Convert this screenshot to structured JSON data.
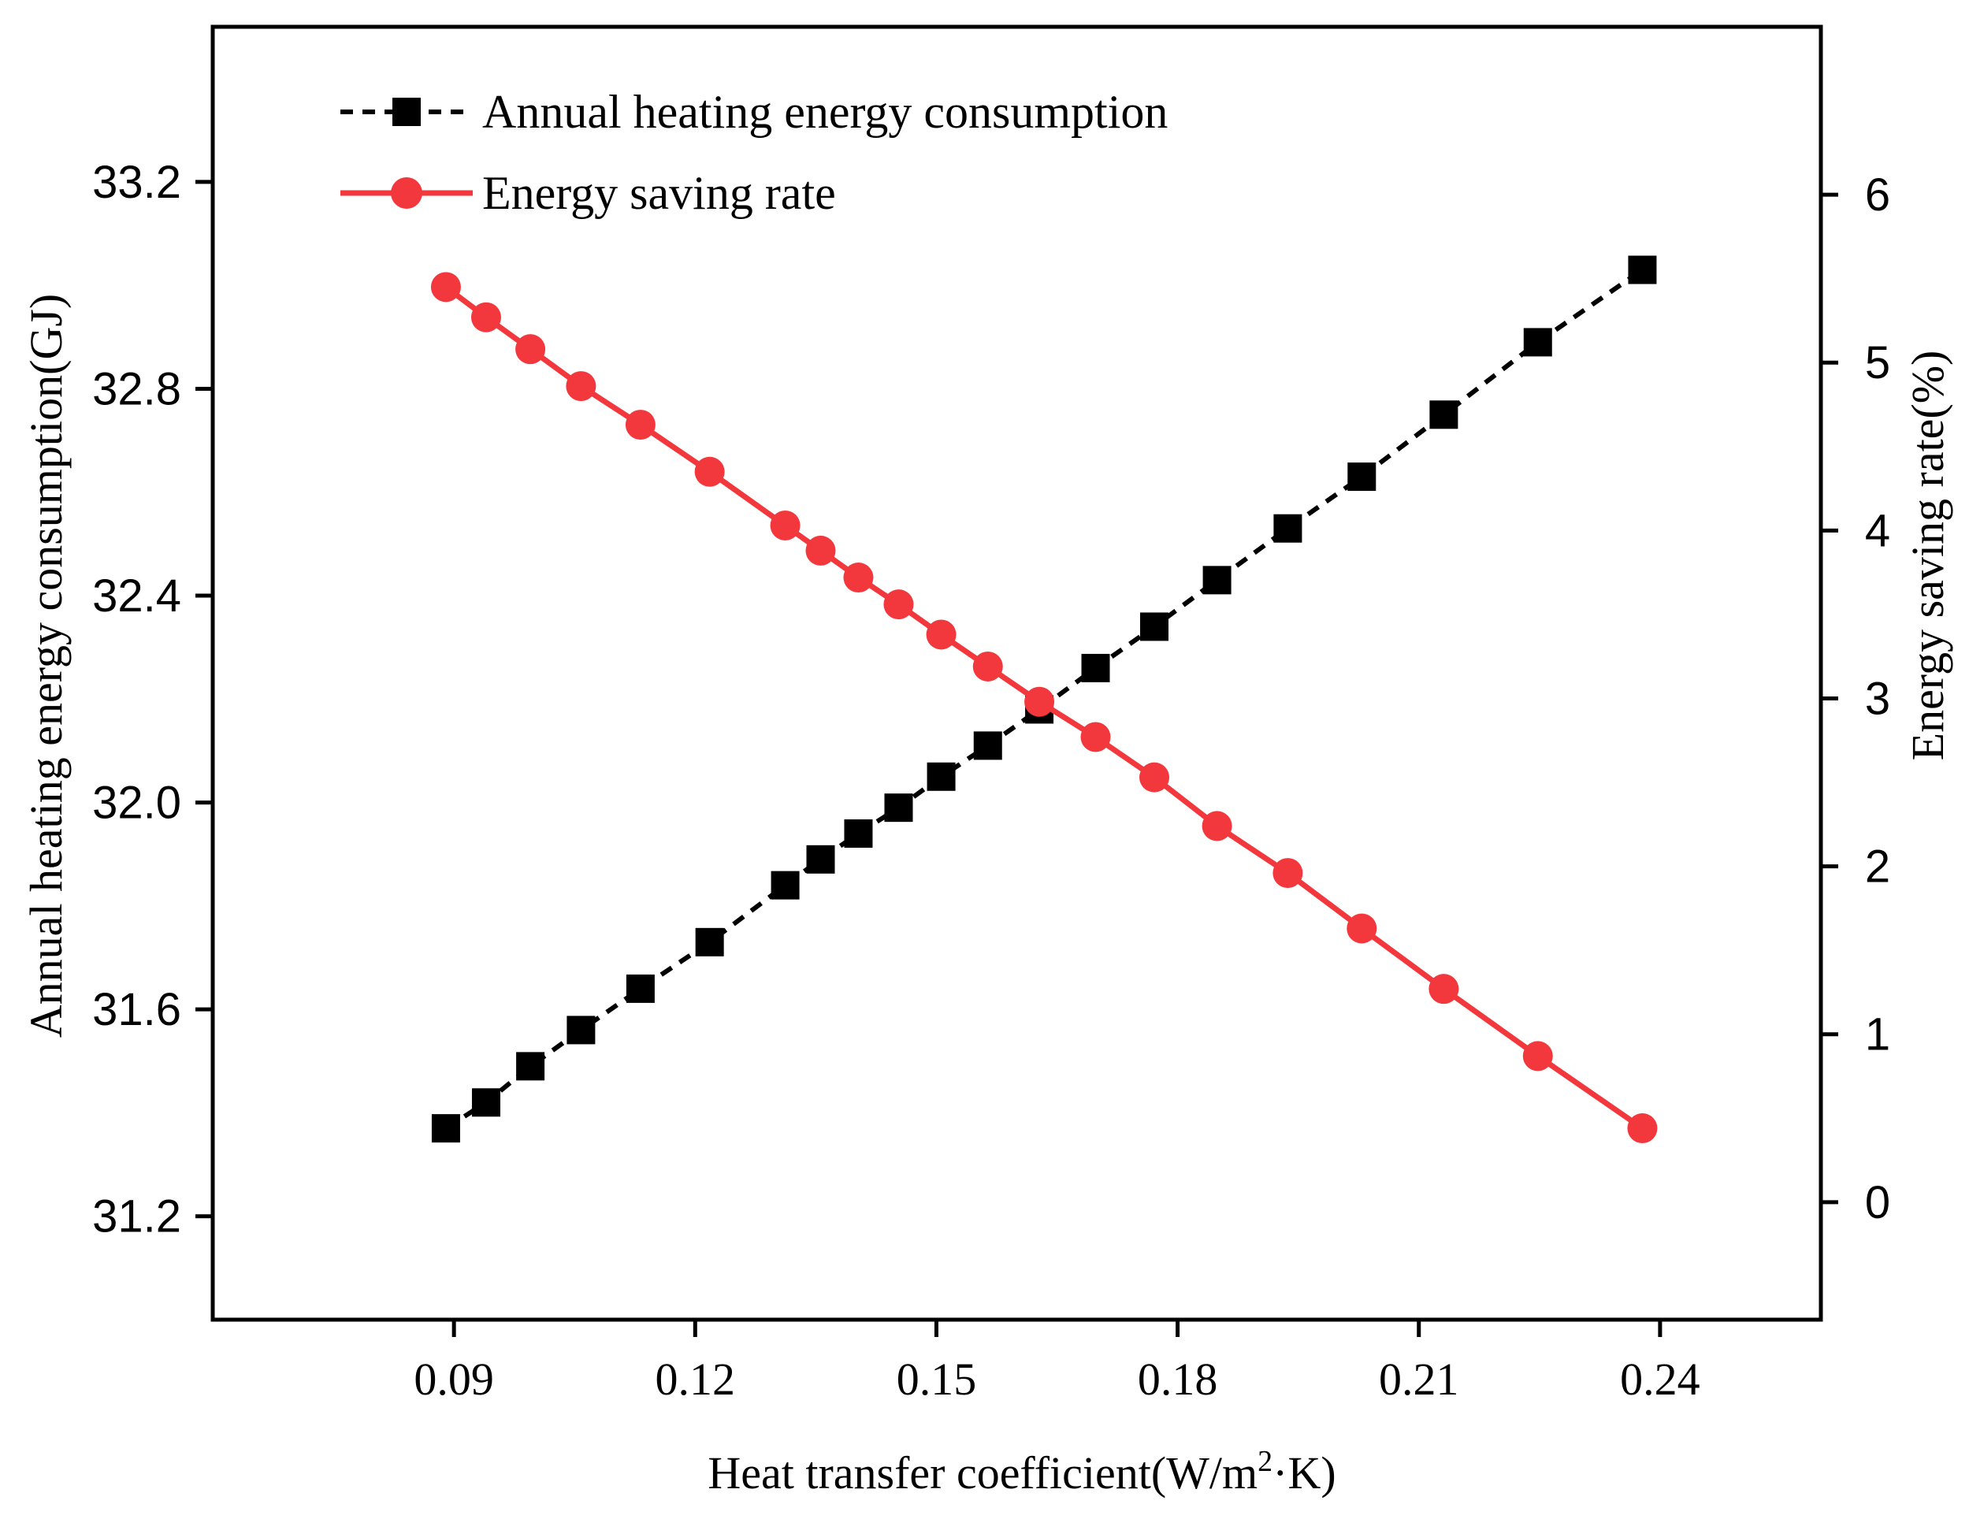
{
  "chart_data": {
    "type": "line",
    "xlabel": "Heat transfer coefficient(W/m²·K)",
    "xlabel_parts": {
      "main": "Heat transfer coefficient(W/m",
      "sup": "2",
      "tail": "·K)"
    },
    "ylabel_left": "Annual heating energy consumption(GJ)",
    "ylabel_right": "Energy saving rate(%)",
    "xlim": [
      0.06,
      0.26
    ],
    "ylim_left": [
      31.0,
      33.5
    ],
    "ylim_right": [
      -0.7,
      7.0
    ],
    "x_ticks": [
      {
        "v": 0.09,
        "label": "0.09"
      },
      {
        "v": 0.12,
        "label": "0.12"
      },
      {
        "v": 0.15,
        "label": "0.15"
      },
      {
        "v": 0.18,
        "label": "0.18"
      },
      {
        "v": 0.21,
        "label": "0.21"
      },
      {
        "v": 0.24,
        "label": "0.24"
      }
    ],
    "y_left_ticks": [
      {
        "v": 31.2,
        "label": "31.2"
      },
      {
        "v": 31.6,
        "label": "31.6"
      },
      {
        "v": 32.0,
        "label": "32.0"
      },
      {
        "v": 32.4,
        "label": "32.4"
      },
      {
        "v": 32.8,
        "label": "32.8"
      },
      {
        "v": 33.2,
        "label": "33.2"
      }
    ],
    "y_right_ticks": [
      {
        "v": 0,
        "label": "0"
      },
      {
        "v": 1,
        "label": "1"
      },
      {
        "v": 2,
        "label": "2"
      },
      {
        "v": 3,
        "label": "3"
      },
      {
        "v": 4,
        "label": "4"
      },
      {
        "v": 5,
        "label": "5"
      },
      {
        "v": 6,
        "label": "6"
      }
    ],
    "x": [
      0.089,
      0.094,
      0.0995,
      0.1058,
      0.1132,
      0.1218,
      0.1312,
      0.1356,
      0.1403,
      0.1453,
      0.1506,
      0.1564,
      0.1628,
      0.1698,
      0.1771,
      0.1849,
      0.1937,
      0.2029,
      0.2131,
      0.2248,
      0.2378
    ],
    "series": [
      {
        "name": "Annual heating energy consumption",
        "axis": "left",
        "color": "#000000",
        "marker": "square",
        "line": "dashed",
        "values": [
          31.37,
          31.42,
          31.49,
          31.56,
          31.64,
          31.73,
          31.84,
          31.89,
          31.94,
          31.99,
          32.05,
          32.11,
          32.18,
          32.26,
          32.34,
          32.43,
          32.53,
          32.63,
          32.75,
          32.89,
          33.03
        ]
      },
      {
        "name": "Energy saving rate",
        "axis": "right",
        "color": "#f2383c",
        "marker": "circle",
        "line": "solid",
        "values": [
          5.45,
          5.27,
          5.08,
          4.86,
          4.63,
          4.35,
          4.03,
          3.88,
          3.72,
          3.56,
          3.38,
          3.19,
          2.98,
          2.77,
          2.53,
          2.24,
          1.96,
          1.63,
          1.27,
          0.87,
          0.44
        ]
      }
    ],
    "legend_position": "top-left",
    "grid": false
  }
}
